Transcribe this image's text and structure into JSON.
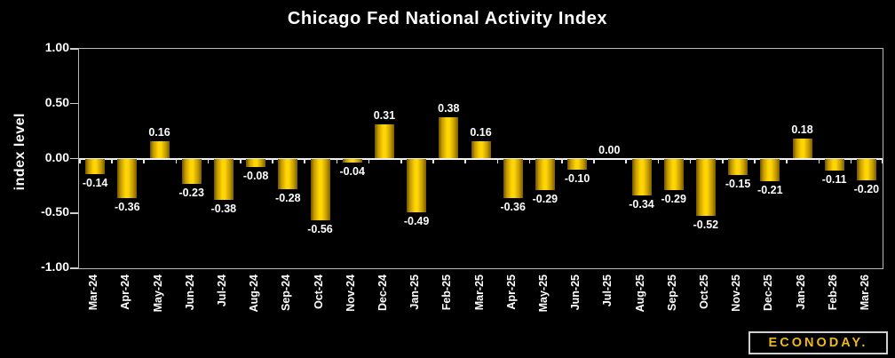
{
  "title": "Chicago Fed National Activity Index",
  "chart_data": {
    "type": "bar",
    "title": "Chicago Fed National Activity Index",
    "xlabel": "",
    "ylabel": "index level",
    "ylim": [
      -1.0,
      1.0
    ],
    "ytick_labels": [
      "1.00",
      "0.50",
      "0.00",
      "-0.50",
      "-1.00"
    ],
    "grid": false,
    "legend": "none",
    "background_color": "#000000",
    "bar_color": "#ffd400",
    "bar_gradient": [
      "#6e5300",
      "#ffd400",
      "#7a5c00"
    ],
    "label_color": "#ffffff",
    "categories": [
      "Mar-24",
      "Apr-24",
      "May-24",
      "Jun-24",
      "Jul-24",
      "Aug-24",
      "Sep-24",
      "Oct-24",
      "Nov-24",
      "Dec-24",
      "Jan-25",
      "Feb-25",
      "Mar-25",
      "Apr-25",
      "May-25",
      "Jun-25",
      "Jul-25",
      "Aug-25",
      "Sep-25",
      "Oct-25",
      "Nov-25",
      "Dec-25",
      "Jan-26",
      "Feb-26",
      "Mar-26"
    ],
    "values": [
      -0.14,
      -0.36,
      0.16,
      -0.23,
      -0.38,
      -0.08,
      -0.28,
      -0.56,
      -0.04,
      0.31,
      -0.49,
      0.38,
      0.16,
      -0.36,
      -0.29,
      -0.1,
      0.0,
      -0.34,
      -0.29,
      -0.52,
      -0.15,
      -0.21,
      0.18,
      -0.11,
      -0.2
    ],
    "data_labels": [
      "-0.14",
      "-0.36",
      "0.16",
      "-0.23",
      "-0.38",
      "-0.08",
      "-0.28",
      "-0.56",
      "-0.04",
      "0.31",
      "-0.49",
      "0.38",
      "0.16",
      "-0.36",
      "-0.29",
      "-0.10",
      "0.00",
      "-0.34",
      "-0.29",
      "-0.52",
      "-0.15",
      "-0.21",
      "0.18",
      "-0.11",
      "-0.20"
    ]
  },
  "branding": {
    "logo_text": "ECONODAY."
  }
}
